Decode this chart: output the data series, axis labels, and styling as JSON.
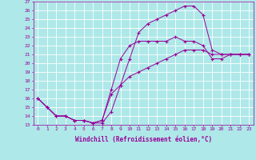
{
  "xlabel": "Windchill (Refroidissement éolien,°C)",
  "bg_color": "#aee8e8",
  "grid_color": "#ffffff",
  "line_color": "#990099",
  "xlim": [
    -0.5,
    23.5
  ],
  "ylim": [
    13,
    27
  ],
  "xticks": [
    0,
    1,
    2,
    3,
    4,
    5,
    6,
    7,
    8,
    9,
    10,
    11,
    12,
    13,
    14,
    15,
    16,
    17,
    18,
    19,
    20,
    21,
    22,
    23
  ],
  "yticks": [
    13,
    14,
    15,
    16,
    17,
    18,
    19,
    20,
    21,
    22,
    23,
    24,
    25,
    26,
    27
  ],
  "curve1_x": [
    0,
    1,
    2,
    3,
    4,
    5,
    6,
    7,
    8,
    9,
    10,
    11,
    12,
    13,
    14,
    15,
    16,
    17,
    18,
    19,
    20,
    21,
    22,
    23
  ],
  "curve1_y": [
    16,
    15,
    14,
    14,
    13.5,
    13.5,
    13.2,
    13.2,
    14.5,
    17.5,
    20.5,
    23.5,
    24.5,
    25.0,
    25.5,
    26.0,
    26.5,
    26.5,
    25.5,
    21.5,
    21.0,
    21.0,
    21.0,
    21.0
  ],
  "curve2_x": [
    0,
    1,
    2,
    3,
    4,
    5,
    6,
    7,
    8,
    9,
    10,
    11,
    12,
    13,
    14,
    15,
    16,
    17,
    18,
    19,
    20,
    21,
    22,
    23
  ],
  "curve2_y": [
    16,
    15,
    14,
    14,
    13.5,
    13.5,
    13.2,
    13.5,
    17.0,
    20.5,
    22.0,
    22.5,
    22.5,
    22.5,
    22.5,
    23.0,
    22.5,
    22.5,
    22.0,
    20.5,
    20.5,
    21.0,
    21.0,
    21.0
  ],
  "curve3_x": [
    0,
    1,
    2,
    3,
    4,
    5,
    6,
    7,
    8,
    9,
    10,
    11,
    12,
    13,
    14,
    15,
    16,
    17,
    18,
    19,
    20,
    21,
    22,
    23
  ],
  "curve3_y": [
    16,
    15,
    14,
    14,
    13.5,
    13.5,
    13.2,
    13.5,
    16.5,
    17.5,
    18.5,
    19.0,
    19.5,
    20.0,
    20.5,
    21.0,
    21.5,
    21.5,
    21.5,
    21.0,
    21.0,
    21.0,
    21.0,
    21.0
  ],
  "markersize": 2.5,
  "linewidth": 0.7
}
